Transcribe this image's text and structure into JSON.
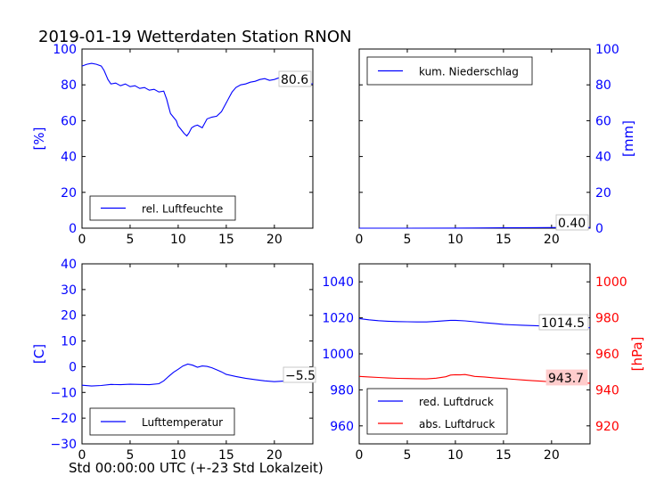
{
  "figure": {
    "title": "2019-01-19 Wetterdaten Station RNON",
    "xlabel": "Std 00:00:00 UTC (+-23 Std Lokalzeit)"
  },
  "colors": {
    "blue": "#0000ff",
    "red": "#ff0000",
    "axis": "#000000"
  },
  "chart_data": [
    {
      "type": "line",
      "panel": "humidity",
      "xlim": [
        0,
        24
      ],
      "ylim": [
        0,
        100
      ],
      "xticks": [
        0,
        5,
        10,
        15,
        20
      ],
      "yticks": [
        0,
        20,
        40,
        60,
        80,
        100
      ],
      "ylabel": "[%]",
      "ylabel_side": "left",
      "tick_color_y": "#0000ff",
      "legend_position": "lower-left",
      "value_label": "80.6",
      "series": [
        {
          "name": "rel. Luftfeuchte",
          "color": "#0000ff",
          "x": [
            0,
            0.5,
            1,
            1.5,
            2,
            2.3,
            2.7,
            3,
            3.5,
            4,
            4.5,
            5,
            5.5,
            6,
            6.5,
            7,
            7.5,
            8,
            8.5,
            8.8,
            9,
            9.2,
            9.5,
            9.8,
            10,
            10.3,
            10.6,
            10.9,
            11.1,
            11.4,
            11.7,
            12,
            12.5,
            13,
            13.5,
            14,
            14.5,
            15,
            15.3,
            15.6,
            16,
            16.5,
            17,
            17.5,
            18,
            18.5,
            19,
            19.5,
            20,
            20.5,
            21,
            21.5,
            22,
            22.5,
            23,
            23.5,
            24
          ],
          "y": [
            90.5,
            91.5,
            92,
            91.5,
            90.5,
            88,
            83,
            80.5,
            81,
            79.5,
            80.5,
            79,
            79.5,
            78,
            78.5,
            77,
            77.5,
            76,
            76.5,
            72,
            68,
            64,
            62,
            60,
            57,
            55,
            53,
            51.5,
            53,
            56,
            57,
            57.5,
            56,
            61,
            62,
            62.5,
            65,
            70,
            73,
            76,
            78.5,
            80,
            80.5,
            81.5,
            82,
            83,
            83.5,
            82.5,
            83,
            84,
            83.5,
            82,
            82.5,
            81.5,
            81,
            80.5,
            80.6
          ]
        }
      ]
    },
    {
      "type": "line",
      "panel": "precipitation",
      "xlim": [
        0,
        24
      ],
      "ylim": [
        0,
        100
      ],
      "xticks": [
        0,
        5,
        10,
        15,
        20
      ],
      "yticks": [
        0,
        20,
        40,
        60,
        80,
        100
      ],
      "ylabel": "[mm]",
      "ylabel_side": "right",
      "tick_color_y": "#0000ff",
      "legend_position": "upper-left",
      "value_label": "0.40",
      "series": [
        {
          "name": "kum. Niederschlag",
          "color": "#0000ff",
          "x": [
            0,
            5,
            10,
            12,
            15,
            18,
            20,
            22,
            24
          ],
          "y": [
            0,
            0,
            0.05,
            0.1,
            0.2,
            0.3,
            0.35,
            0.38,
            0.4
          ]
        }
      ]
    },
    {
      "type": "line",
      "panel": "temperature",
      "xlim": [
        0,
        24
      ],
      "ylim": [
        -30,
        40
      ],
      "xticks": [
        0,
        5,
        10,
        15,
        20
      ],
      "yticks": [
        -30,
        -20,
        -10,
        0,
        10,
        20,
        30,
        40
      ],
      "ylabel": "[C]",
      "ylabel_side": "left",
      "tick_color_y": "#0000ff",
      "legend_position": "lower-left",
      "value_label": "-5.5",
      "series": [
        {
          "name": "Lufttemperatur",
          "color": "#0000ff",
          "x": [
            0,
            1,
            2,
            3,
            4,
            5,
            6,
            7,
            8,
            8.5,
            9,
            9.5,
            10,
            10.5,
            11,
            11.5,
            12,
            12.5,
            13,
            13.5,
            14,
            14.5,
            15,
            16,
            17,
            18,
            19,
            20,
            21,
            22,
            23,
            24
          ],
          "y": [
            -7.2,
            -7.5,
            -7.3,
            -6.9,
            -7.0,
            -6.8,
            -6.9,
            -7.0,
            -6.6,
            -5.5,
            -3.8,
            -2.2,
            -1.0,
            0.3,
            1.0,
            0.6,
            -0.2,
            0.3,
            0.1,
            -0.4,
            -1.2,
            -2.0,
            -3.0,
            -3.8,
            -4.5,
            -5.0,
            -5.5,
            -5.8,
            -5.6,
            -5.5,
            -5.4,
            -5.5
          ]
        }
      ]
    },
    {
      "type": "line",
      "panel": "pressure",
      "xlim": [
        0,
        24
      ],
      "ylim": [
        950,
        1050
      ],
      "ylim_right": [
        910,
        1010
      ],
      "xticks": [
        0,
        5,
        10,
        15,
        20
      ],
      "yticks": [
        960,
        980,
        1000,
        1020,
        1040
      ],
      "yticks_right": [
        920,
        940,
        960,
        980,
        1000
      ],
      "ylabel": "",
      "ylabel_right": "[hPa]",
      "tick_color_y": "#0000ff",
      "tick_color_y_right": "#ff0000",
      "legend_position": "lower-left",
      "value_label_red": "1014.5",
      "value_label_abs": "943.7",
      "series": [
        {
          "name": "red. Luftdruck",
          "axis": "left",
          "color": "#0000ff",
          "x": [
            0,
            1,
            2,
            3,
            4,
            5,
            6,
            7,
            8,
            9,
            9.5,
            10,
            11,
            12,
            13,
            14,
            15,
            16,
            17,
            18,
            19,
            20,
            21,
            22,
            23,
            24
          ],
          "y": [
            1019.6,
            1018.9,
            1018.4,
            1018.1,
            1017.9,
            1017.8,
            1017.7,
            1017.7,
            1018.0,
            1018.4,
            1018.6,
            1018.6,
            1018.3,
            1017.8,
            1017.3,
            1016.9,
            1016.4,
            1016.1,
            1015.9,
            1015.7,
            1015.5,
            1015.2,
            1015.0,
            1014.8,
            1014.6,
            1014.5
          ]
        },
        {
          "name": "abs. Luftdruck",
          "axis": "right",
          "color": "#ff0000",
          "x": [
            0,
            1,
            2,
            3,
            4,
            5,
            6,
            7,
            8,
            9,
            9.5,
            10,
            10.5,
            11,
            11.5,
            12,
            13,
            14,
            15,
            16,
            17,
            18,
            19,
            20,
            21,
            22,
            23,
            24
          ],
          "y": [
            947.5,
            947.2,
            946.9,
            946.6,
            946.4,
            946.3,
            946.2,
            946.1,
            946.5,
            947.3,
            948.2,
            948.4,
            948.3,
            948.5,
            948.0,
            947.5,
            947.2,
            946.7,
            946.3,
            945.9,
            945.5,
            945.1,
            944.8,
            944.4,
            944.1,
            943.9,
            943.8,
            943.7
          ]
        }
      ]
    }
  ]
}
